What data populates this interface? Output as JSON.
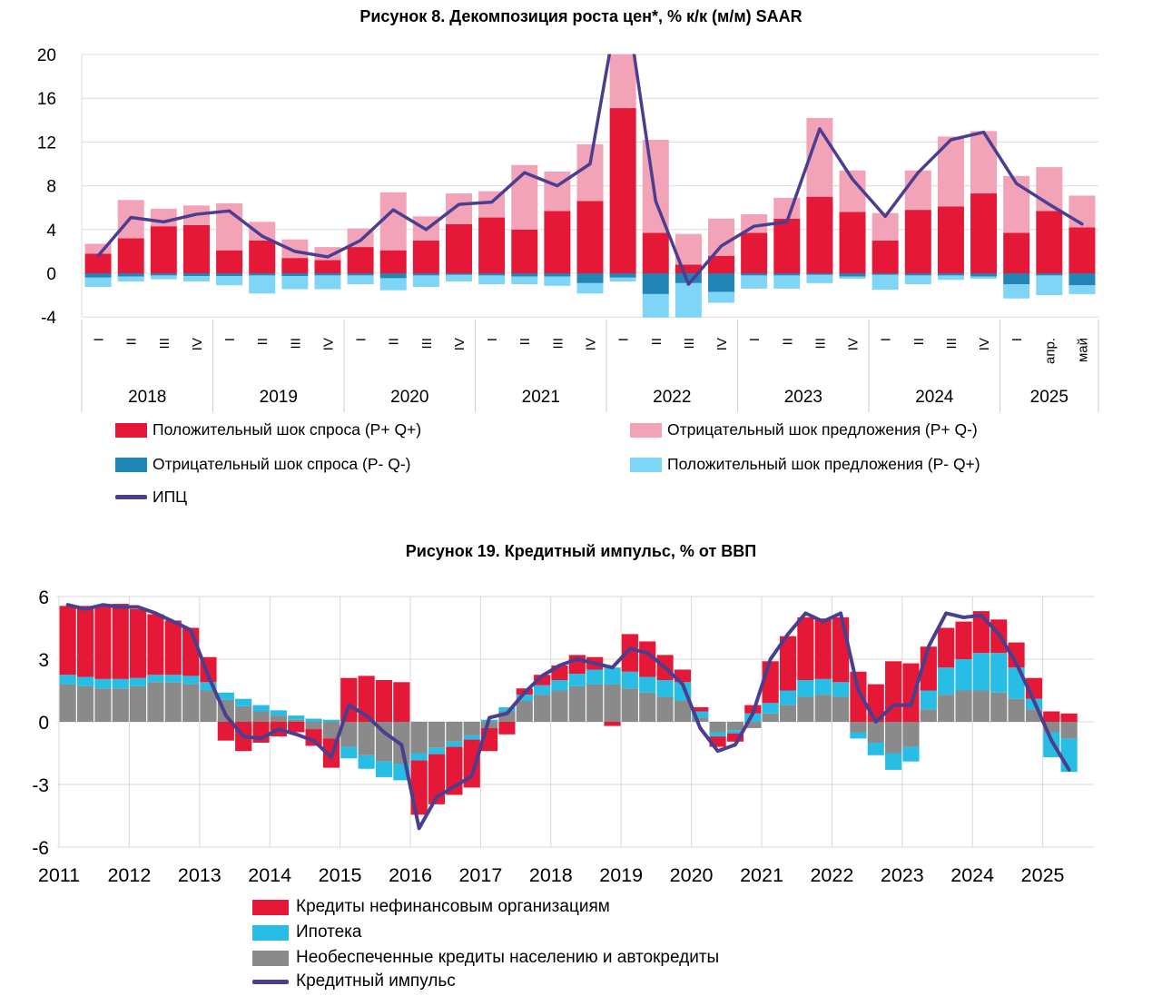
{
  "page": {
    "background": "#ffffff"
  },
  "chart_data": [
    {
      "id": "figure8",
      "type": "bar",
      "subtype": "stacked-bar-with-line",
      "title": "Рисунок 8. Декомпозиция роста цен*, % к/к (м/м) SAAR",
      "ylim": [
        -4,
        20
      ],
      "yticks": [
        20,
        16,
        12,
        8,
        4,
        0,
        -4
      ],
      "grid": "horizontal",
      "legend_position": "bottom",
      "year_groups": [
        {
          "label": "2018",
          "count": 4
        },
        {
          "label": "2019",
          "count": 4
        },
        {
          "label": "2020",
          "count": 4
        },
        {
          "label": "2021",
          "count": 4
        },
        {
          "label": "2022",
          "count": 4
        },
        {
          "label": "2023",
          "count": 4
        },
        {
          "label": "2024",
          "count": 4
        },
        {
          "label": "2025",
          "count": 3
        }
      ],
      "categories": [
        "I",
        "II",
        "III",
        "IV",
        "I",
        "II",
        "III",
        "IV",
        "I",
        "II",
        "III",
        "IV",
        "I",
        "II",
        "III",
        "IV",
        "I",
        "II",
        "III",
        "IV",
        "I",
        "II",
        "III",
        "IV",
        "I",
        "II",
        "III",
        "IV",
        "I",
        "апр.",
        "май"
      ],
      "series": [
        {
          "name": "Положительный шок спроса (P+ Q+)",
          "color": "#e51937",
          "values": [
            1.8,
            3.2,
            4.3,
            4.4,
            2.1,
            3.0,
            1.4,
            1.2,
            2.4,
            2.1,
            3.0,
            4.5,
            5.1,
            4.0,
            5.7,
            6.6,
            15.1,
            3.7,
            0.8,
            1.6,
            3.7,
            5.0,
            7.0,
            5.6,
            3.0,
            5.8,
            6.1,
            7.3,
            3.7,
            5.7,
            4.2
          ]
        },
        {
          "name": "Отрицательный шок предложения (P+ Q-)",
          "color": "#f2a3b8",
          "values": [
            0.9,
            3.5,
            1.6,
            1.8,
            4.3,
            1.7,
            1.7,
            1.2,
            1.7,
            5.3,
            2.2,
            2.8,
            2.4,
            5.9,
            3.6,
            5.2,
            6.0,
            8.5,
            2.8,
            3.4,
            1.7,
            1.9,
            7.2,
            3.8,
            2.5,
            3.6,
            6.4,
            5.7,
            5.2,
            4.0,
            2.9
          ]
        },
        {
          "name": "Отрицательный шок спроса (P- Q-)",
          "color": "#2185b5",
          "values": [
            -0.4,
            -0.3,
            -0.2,
            -0.25,
            -0.25,
            -0.2,
            -0.25,
            -0.2,
            -0.2,
            -0.45,
            -0.2,
            -0.15,
            -0.2,
            -0.3,
            -0.3,
            -0.9,
            -0.4,
            -1.9,
            -0.9,
            -1.7,
            -0.2,
            -0.2,
            -0.15,
            -0.3,
            -0.15,
            -0.2,
            -0.2,
            -0.3,
            -1.0,
            -0.2,
            -1.1
          ]
        },
        {
          "name": "Положительный шок предложения (P- Q+)",
          "color": "#7ed5f5",
          "values": [
            -0.85,
            -0.45,
            -0.35,
            -0.5,
            -0.85,
            -1.65,
            -1.2,
            -1.25,
            -0.8,
            -1.1,
            -1.05,
            -0.6,
            -0.8,
            -0.7,
            -0.85,
            -0.95,
            -0.35,
            -2.2,
            -3.2,
            -1.0,
            -1.2,
            -1.2,
            -0.75,
            -0.2,
            -1.35,
            -0.8,
            -0.4,
            -0.2,
            -1.3,
            -1.8,
            -0.8
          ]
        }
      ],
      "line_series": {
        "name": "ИПЦ",
        "color": "#4b3e8f",
        "values": [
          1.6,
          5.1,
          4.7,
          5.4,
          5.7,
          3.4,
          2.0,
          1.5,
          3.0,
          5.8,
          4.0,
          6.3,
          6.5,
          9.2,
          8.0,
          10.0,
          27,
          6.6,
          -1.0,
          2.5,
          4.3,
          4.7,
          13.2,
          8.6,
          5.2,
          9.2,
          12.2,
          12.9,
          8.2,
          6.3,
          4.5
        ],
        "note_clipped_at_top": "2022-I value exceeds axis maximum and is clipped at 20"
      },
      "legend": [
        {
          "label": "Положительный шок спроса (P+ Q+)",
          "color": "#e51937",
          "type": "box"
        },
        {
          "label": "Отрицательный шок предложения (P+ Q-)",
          "color": "#f2a3b8",
          "type": "box"
        },
        {
          "label": "Отрицательный шок спроса (P- Q-)",
          "color": "#2185b5",
          "type": "box"
        },
        {
          "label": "Положительный шок предложения (P- Q+)",
          "color": "#7ed5f5",
          "type": "box"
        },
        {
          "label": "ИПЦ",
          "color": "#4b3e8f",
          "type": "line"
        }
      ]
    },
    {
      "id": "figure19",
      "type": "bar",
      "subtype": "stacked-bar-with-line",
      "title": "Рисунок 19. Кредитный импульс, % от ВВП",
      "ylim": [
        -6,
        6
      ],
      "yticks": [
        6,
        3,
        0,
        -3,
        -6
      ],
      "xticks": [
        2011,
        2012,
        2013,
        2014,
        2015,
        2016,
        2017,
        2018,
        2019,
        2020,
        2021,
        2022,
        2023,
        2024,
        2025
      ],
      "xlim": [
        2011,
        2025.75
      ],
      "x_start": 2011,
      "x_step_years": 0.25,
      "x_unit": "quarter",
      "grid": "both",
      "legend_position": "bottom",
      "series": [
        {
          "name": "Необеспеченные кредиты населению и автокредиты",
          "color": "#8a8a8a",
          "values": [
            1.8,
            1.7,
            1.6,
            1.6,
            1.7,
            1.9,
            1.9,
            1.8,
            1.5,
            1.05,
            0.75,
            0.5,
            0.3,
            0.1,
            -0.35,
            -0.8,
            -1.2,
            -1.6,
            -1.9,
            -2.0,
            -1.5,
            -1.25,
            -0.95,
            -0.65,
            -0.3,
            0.5,
            1.0,
            1.3,
            1.5,
            1.7,
            1.8,
            1.8,
            1.6,
            1.4,
            1.2,
            1.0,
            0.2,
            -0.5,
            -0.4,
            -0.3,
            0.4,
            0.8,
            1.2,
            1.3,
            1.2,
            -0.5,
            -1.0,
            -1.5,
            -1.2,
            0.6,
            1.3,
            1.5,
            1.5,
            1.4,
            1.1,
            0.6,
            -0.5,
            -0.8
          ]
        },
        {
          "name": "Ипотека",
          "color": "#27bde4",
          "values": [
            0.45,
            0.45,
            0.45,
            0.45,
            0.4,
            0.35,
            0.35,
            0.4,
            0.4,
            0.35,
            0.35,
            0.3,
            0.25,
            0.2,
            0.15,
            0.1,
            -0.55,
            -0.65,
            -0.75,
            -0.8,
            -0.35,
            -0.3,
            -0.25,
            -0.2,
            0.1,
            0.2,
            0.3,
            0.45,
            0.5,
            0.6,
            0.7,
            0.8,
            0.8,
            0.75,
            0.8,
            0.9,
            0.3,
            -0.2,
            -0.15,
            0.4,
            0.5,
            0.7,
            0.8,
            0.75,
            0.7,
            -0.3,
            -0.6,
            -0.8,
            -0.7,
            0.9,
            1.3,
            1.5,
            1.8,
            1.9,
            1.5,
            0.5,
            -1.2,
            -1.6
          ]
        },
        {
          "name": "Кредиты нефинансовым организациям",
          "color": "#e51937",
          "values": [
            3.3,
            3.4,
            3.5,
            3.6,
            3.3,
            2.9,
            2.6,
            2.3,
            1.2,
            -0.9,
            -1.4,
            -1.0,
            -0.7,
            -0.5,
            -0.8,
            -1.4,
            2.1,
            2.2,
            2.0,
            1.9,
            -2.6,
            -2.4,
            -2.3,
            -2.3,
            -1.1,
            -0.6,
            0.3,
            0.5,
            0.7,
            0.9,
            0.6,
            -0.2,
            1.8,
            1.7,
            1.2,
            0.6,
            0.2,
            -0.5,
            -0.4,
            0.4,
            2.0,
            2.6,
            3.0,
            2.9,
            3.1,
            2.4,
            1.8,
            2.9,
            2.8,
            2.1,
            1.9,
            1.8,
            2.0,
            1.6,
            1.2,
            1.0,
            0.5,
            0.4
          ]
        }
      ],
      "line_series": {
        "name": "Кредитный импульс",
        "color": "#4b3e8f",
        "values": [
          5.6,
          5.4,
          5.6,
          5.5,
          5.5,
          5.2,
          4.8,
          4.4,
          2.2,
          0.3,
          -0.7,
          -0.8,
          -0.35,
          -0.6,
          -0.9,
          -1.7,
          0.8,
          0.3,
          -0.5,
          -1.1,
          -5.1,
          -3.6,
          -3.1,
          -2.6,
          0.2,
          0.4,
          1.4,
          2.2,
          2.7,
          3.0,
          2.8,
          2.6,
          3.5,
          3.3,
          2.6,
          1.8,
          -0.3,
          -1.4,
          -1.1,
          0.4,
          3.0,
          4.2,
          5.2,
          4.8,
          5.2,
          1.5,
          0.0,
          0.8,
          0.8,
          3.6,
          5.2,
          5.0,
          5.1,
          4.2,
          2.8,
          1.0,
          -0.9,
          -2.3
        ]
      },
      "legend": [
        {
          "label": "Кредиты нефинансовым организациям",
          "color": "#e51937",
          "type": "box"
        },
        {
          "label": "Ипотека",
          "color": "#27bde4",
          "type": "box"
        },
        {
          "label": "Необеспеченные кредиты населению и автокредиты",
          "color": "#8a8a8a",
          "type": "box"
        },
        {
          "label": "Кредитный импульс",
          "color": "#4b3e8f",
          "type": "line"
        }
      ]
    }
  ]
}
